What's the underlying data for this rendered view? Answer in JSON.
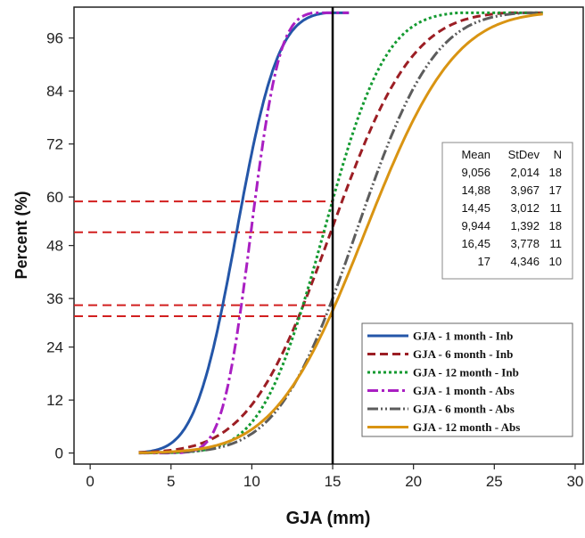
{
  "chart_data": {
    "type": "line",
    "title": "",
    "xlabel": "GJA (mm)",
    "ylabel": "Percent (%)",
    "xlim": [
      -1,
      30.5
    ],
    "ylim": [
      -2.5,
      101
    ],
    "x_ticks": [
      0,
      5,
      10,
      15,
      20,
      25,
      30
    ],
    "y_ticks": [
      0,
      12,
      24,
      36,
      48,
      60,
      72,
      84,
      96
    ],
    "y_tick_positions": [
      0,
      12,
      24,
      35,
      47,
      58,
      70,
      82,
      94
    ],
    "grid": false,
    "legend_position": "bottom-right",
    "reference_lines": {
      "vertical_x": 15,
      "horizontal_y": [
        57,
        50,
        33.5,
        31
      ]
    },
    "stats_table": {
      "headers": [
        "Mean",
        "StDev",
        "N"
      ],
      "rows": [
        [
          "9,056",
          "2,014",
          "18"
        ],
        [
          "14,88",
          "3,967",
          "17"
        ],
        [
          "14,45",
          "3,012",
          "11"
        ],
        [
          "9,944",
          "1,392",
          "18"
        ],
        [
          "16,45",
          "3,778",
          "11"
        ],
        [
          "17",
          "4,346",
          "10"
        ]
      ]
    },
    "series": [
      {
        "name": "GJA - 1 month - Inb",
        "mean": 9.056,
        "sd": 2.014,
        "x_min": 3,
        "x_max": 16,
        "color": "#2456a8",
        "dash": ""
      },
      {
        "name": "GJA - 6 month - Inb",
        "mean": 14.88,
        "sd": 3.967,
        "x_min": 3,
        "x_max": 28,
        "color": "#9c1e24",
        "dash": "9,5"
      },
      {
        "name": "GJA - 12 month - Inb",
        "mean": 14.45,
        "sd": 3.012,
        "x_min": 3,
        "x_max": 28,
        "color": "#139a30",
        "dash": "3,3"
      },
      {
        "name": "GJA - 1 month - Abs",
        "mean": 9.944,
        "sd": 1.392,
        "x_min": 3,
        "x_max": 16,
        "color": "#a91fc2",
        "dash": "12,4,3,4"
      },
      {
        "name": "GJA - 6 month - Abs",
        "mean": 16.45,
        "sd": 3.778,
        "x_min": 3,
        "x_max": 28,
        "color": "#5c5c5c",
        "dash": "12,3,2,3,2,3"
      },
      {
        "name": "GJA - 12 month - Abs",
        "mean": 17,
        "sd": 4.346,
        "x_min": 3,
        "x_max": 28,
        "color": "#d99412",
        "dash": ""
      }
    ]
  }
}
